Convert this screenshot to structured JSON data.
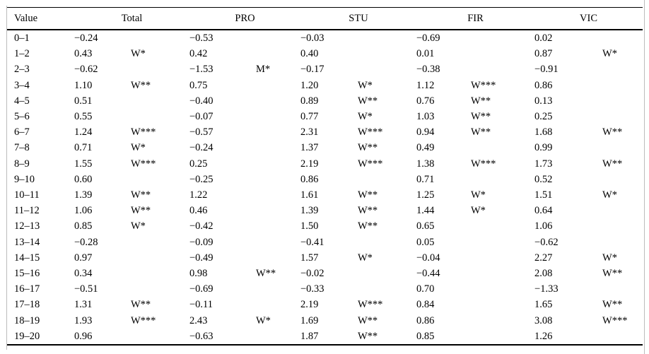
{
  "table": {
    "columns": [
      "value-range-cell",
      "total-value-cell",
      "total-significance-cell",
      "pro-value-cell",
      "pro-significance-cell",
      "stu-value-cell",
      "stu-significance-cell",
      "fir-value-cell",
      "fir-significance-cell",
      "vic-value-cell",
      "vic-significance-cell"
    ],
    "group_headers": [
      {
        "label": "Value",
        "span": 1,
        "align": "left"
      },
      {
        "label": "Total",
        "span": 2,
        "align": "center"
      },
      {
        "label": "PRO",
        "span": 2,
        "align": "center"
      },
      {
        "label": "STU",
        "span": 2,
        "align": "center"
      },
      {
        "label": "FIR",
        "span": 2,
        "align": "center"
      },
      {
        "label": "VIC",
        "span": 2,
        "align": "center"
      }
    ],
    "rows": [
      [
        "0–1",
        "−0.24",
        "",
        "−0.53",
        "",
        "−0.03",
        "",
        "−0.69",
        "",
        "0.02",
        ""
      ],
      [
        "1–2",
        "0.43",
        "W*",
        "0.42",
        "",
        "0.40",
        "",
        "0.01",
        "",
        "0.87",
        "W*"
      ],
      [
        "2–3",
        "−0.62",
        "",
        "−1.53",
        "M*",
        "−0.17",
        "",
        "−0.38",
        "",
        "−0.91",
        ""
      ],
      [
        "3–4",
        "1.10",
        "W**",
        "0.75",
        "",
        "1.20",
        "W*",
        "1.12",
        "W***",
        "0.86",
        ""
      ],
      [
        "4–5",
        "0.51",
        "",
        "−0.40",
        "",
        "0.89",
        "W**",
        "0.76",
        "W**",
        "0.13",
        ""
      ],
      [
        "5–6",
        "0.55",
        "",
        "−0.07",
        "",
        "0.77",
        "W*",
        "1.03",
        "W**",
        "0.25",
        ""
      ],
      [
        "6–7",
        "1.24",
        "W***",
        "−0.57",
        "",
        "2.31",
        "W***",
        "0.94",
        "W**",
        "1.68",
        "W**"
      ],
      [
        "7–8",
        "0.71",
        "W*",
        "−0.24",
        "",
        "1.37",
        "W**",
        "0.49",
        "",
        "0.99",
        ""
      ],
      [
        "8–9",
        "1.55",
        "W***",
        "0.25",
        "",
        "2.19",
        "W***",
        "1.38",
        "W***",
        "1.73",
        "W**"
      ],
      [
        "9–10",
        "0.60",
        "",
        "−0.25",
        "",
        "0.86",
        "",
        "0.71",
        "",
        "0.52",
        ""
      ],
      [
        "10–11",
        "1.39",
        "W**",
        "1.22",
        "",
        "1.61",
        "W**",
        "1.25",
        "W*",
        "1.51",
        "W*"
      ],
      [
        "11–12",
        "1.06",
        "W**",
        "0.46",
        "",
        "1.39",
        "W**",
        "1.44",
        "W*",
        "0.64",
        ""
      ],
      [
        "12–13",
        "0.85",
        "W*",
        "−0.42",
        "",
        "1.50",
        "W**",
        "0.65",
        "",
        "1.06",
        ""
      ],
      [
        "13–14",
        "−0.28",
        "",
        "−0.09",
        "",
        "−0.41",
        "",
        "0.05",
        "",
        "−0.62",
        ""
      ],
      [
        "14–15",
        "0.97",
        "",
        "−0.49",
        "",
        "1.57",
        "W*",
        "−0.04",
        "",
        "2.27",
        "W*"
      ],
      [
        "15–16",
        "0.34",
        "",
        "0.98",
        "W**",
        "−0.02",
        "",
        "−0.44",
        "",
        "2.08",
        "W**"
      ],
      [
        "16–17",
        "−0.51",
        "",
        "−0.69",
        "",
        "−0.33",
        "",
        "0.70",
        "",
        "−1.33",
        ""
      ],
      [
        "17–18",
        "1.31",
        "W**",
        "−0.11",
        "",
        "2.19",
        "W***",
        "0.84",
        "",
        "1.65",
        "W**"
      ],
      [
        "18–19",
        "1.93",
        "W***",
        "2.43",
        "W*",
        "1.69",
        "W**",
        "0.86",
        "",
        "3.08",
        "W***"
      ],
      [
        "19–20",
        "0.96",
        "",
        "−0.63",
        "",
        "1.87",
        "W**",
        "0.85",
        "",
        "1.26",
        ""
      ]
    ]
  },
  "colors": {
    "text": "#000000",
    "background": "#ffffff",
    "rule": "#000000",
    "side_rule": "#bcbcbc"
  }
}
